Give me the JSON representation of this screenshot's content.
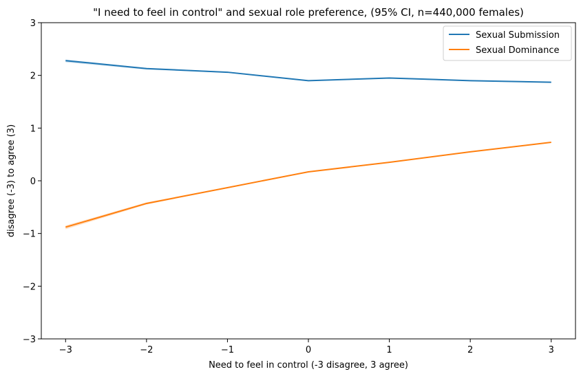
{
  "chart_data": {
    "type": "line",
    "title": "\"I need to feel in control\" and sexual role preference, (95% CI, n=440,000 females)",
    "xlabel": "Need to feel in control (-3 disagree, 3 agree)",
    "ylabel": "disagree (-3) to agree (3)",
    "x": [
      -3,
      -2,
      -1,
      0,
      1,
      2,
      3
    ],
    "x_tick_labels": [
      "−3",
      "−2",
      "−1",
      "0",
      "1",
      "2",
      "3"
    ],
    "xlim": [
      -3.3,
      3.3
    ],
    "ylim": [
      -3,
      3
    ],
    "y_ticks": [
      -3,
      -2,
      -1,
      0,
      1,
      2,
      3
    ],
    "y_tick_labels": [
      "−3",
      "−2",
      "−1",
      "0",
      "1",
      "2",
      "3"
    ],
    "grid": false,
    "legend_position": "top-right",
    "series": [
      {
        "name": "Sexual Submission",
        "color": "#1f77b4",
        "values": [
          2.28,
          2.13,
          2.06,
          1.9,
          1.95,
          1.9,
          1.87
        ],
        "ci_lower": [
          2.25,
          2.11,
          2.05,
          1.89,
          1.94,
          1.89,
          1.86
        ],
        "ci_upper": [
          2.3,
          2.14,
          2.07,
          1.91,
          1.96,
          1.91,
          1.88
        ]
      },
      {
        "name": "Sexual Dominance",
        "color": "#ff7f0e",
        "values": [
          -0.88,
          -0.43,
          -0.13,
          0.17,
          0.35,
          0.55,
          0.73
        ],
        "ci_lower": [
          -0.92,
          -0.45,
          -0.14,
          0.16,
          0.34,
          0.54,
          0.72
        ],
        "ci_upper": [
          -0.85,
          -0.41,
          -0.12,
          0.18,
          0.36,
          0.56,
          0.74
        ]
      }
    ]
  }
}
